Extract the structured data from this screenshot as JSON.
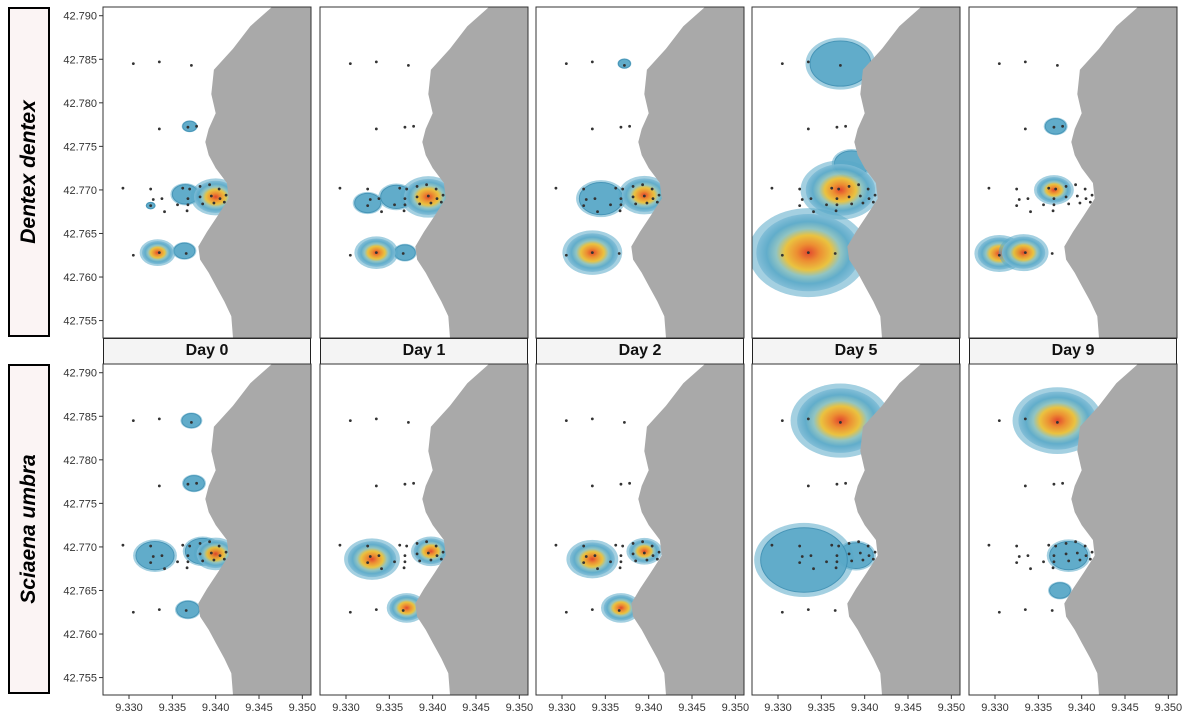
{
  "species_labels": [
    "Dentex dentex",
    "Sciaena umbra"
  ],
  "day_labels": [
    "Day 0",
    "Day 1",
    "Day 2",
    "Day 5",
    "Day 9"
  ],
  "colors": {
    "land": "#a9a9a9",
    "sea": "#ffffff",
    "density_low": "#5aa9c8",
    "density_mid": "#f2c12e",
    "density_high": "#e8381a",
    "receiver": "#333333"
  },
  "chart_data": {
    "type": "heatmap",
    "title": "",
    "xlabel": "",
    "ylabel": "",
    "xlim": [
      9.327,
      9.351
    ],
    "ylim": [
      42.753,
      42.791
    ],
    "x_ticks": [
      "9.330",
      "9.335",
      "9.340",
      "9.345",
      "9.350"
    ],
    "y_ticks": [
      "42.790",
      "42.785",
      "42.780",
      "42.775",
      "42.770",
      "42.765",
      "42.760",
      "42.755"
    ],
    "grid": false,
    "receivers": [
      [
        9.3305,
        42.7845
      ],
      [
        9.3335,
        42.7847
      ],
      [
        9.3372,
        42.7843
      ],
      [
        9.3335,
        42.777
      ],
      [
        9.3368,
        42.7772
      ],
      [
        9.3378,
        42.7773
      ],
      [
        9.3293,
        42.7702
      ],
      [
        9.3325,
        42.7701
      ],
      [
        9.3362,
        42.7702
      ],
      [
        9.337,
        42.7701
      ],
      [
        9.3382,
        42.7704
      ],
      [
        9.3393,
        42.7706
      ],
      [
        9.3404,
        42.7701
      ],
      [
        9.3328,
        42.7689
      ],
      [
        9.3338,
        42.769
      ],
      [
        9.3368,
        42.769
      ],
      [
        9.3382,
        42.7692
      ],
      [
        9.3395,
        42.7693
      ],
      [
        9.3405,
        42.769
      ],
      [
        9.3412,
        42.7694
      ],
      [
        9.3325,
        42.7682
      ],
      [
        9.3356,
        42.7683
      ],
      [
        9.3368,
        42.7683
      ],
      [
        9.3385,
        42.7684
      ],
      [
        9.3398,
        42.7685
      ],
      [
        9.341,
        42.7686
      ],
      [
        9.3341,
        42.7675
      ],
      [
        9.3367,
        42.7676
      ],
      [
        9.3305,
        42.7625
      ],
      [
        9.3335,
        42.7628
      ],
      [
        9.3366,
        42.7627
      ]
    ],
    "panels": [
      {
        "species": "Dentex dentex",
        "day": "Day 0",
        "centers": [
          {
            "x": 9.34,
            "y": 42.7692,
            "r": 0.0025,
            "peak": 0.95
          },
          {
            "x": 9.3365,
            "y": 42.7695,
            "r": 0.0015,
            "peak": 0.3
          },
          {
            "x": 9.3333,
            "y": 42.7628,
            "r": 0.0018,
            "peak": 0.45
          },
          {
            "x": 9.3364,
            "y": 42.763,
            "r": 0.0012,
            "peak": 0.2
          },
          {
            "x": 9.337,
            "y": 42.7773,
            "r": 0.0008,
            "peak": 0.15
          },
          {
            "x": 9.3325,
            "y": 42.7682,
            "r": 0.0005,
            "peak": 0.1
          }
        ]
      },
      {
        "species": "Dentex dentex",
        "day": "Day 1",
        "centers": [
          {
            "x": 9.3395,
            "y": 42.7692,
            "r": 0.0028,
            "peak": 0.9
          },
          {
            "x": 9.3358,
            "y": 42.7692,
            "r": 0.0018,
            "peak": 0.35
          },
          {
            "x": 9.3325,
            "y": 42.7685,
            "r": 0.0015,
            "peak": 0.2
          },
          {
            "x": 9.3335,
            "y": 42.7628,
            "r": 0.0022,
            "peak": 0.6
          },
          {
            "x": 9.3368,
            "y": 42.7628,
            "r": 0.0012,
            "peak": 0.2
          }
        ]
      },
      {
        "species": "Dentex dentex",
        "day": "Day 2",
        "centers": [
          {
            "x": 9.3395,
            "y": 42.7694,
            "r": 0.0026,
            "peak": 0.9
          },
          {
            "x": 9.3345,
            "y": 42.769,
            "r": 0.0025,
            "peak": 0.25
          },
          {
            "x": 9.3335,
            "y": 42.7628,
            "r": 0.003,
            "peak": 0.85
          },
          {
            "x": 9.3372,
            "y": 42.7845,
            "r": 0.0007,
            "peak": 0.15
          }
        ]
      },
      {
        "species": "Dentex dentex",
        "day": "Day 5",
        "centers": [
          {
            "x": 9.3335,
            "y": 42.7628,
            "r": 0.006,
            "peak": 1.0
          },
          {
            "x": 9.3372,
            "y": 42.77,
            "r": 0.004,
            "peak": 0.45
          },
          {
            "x": 9.3372,
            "y": 42.7845,
            "r": 0.0035,
            "peak": 0.3
          },
          {
            "x": 9.3385,
            "y": 42.773,
            "r": 0.002,
            "peak": 0.2
          }
        ]
      },
      {
        "species": "Dentex dentex",
        "day": "Day 9",
        "centers": [
          {
            "x": 9.3305,
            "y": 42.7627,
            "r": 0.0025,
            "peak": 0.55
          },
          {
            "x": 9.3333,
            "y": 42.7628,
            "r": 0.0025,
            "peak": 0.8
          },
          {
            "x": 9.3368,
            "y": 42.77,
            "r": 0.002,
            "peak": 0.7
          },
          {
            "x": 9.337,
            "y": 42.7773,
            "r": 0.0012,
            "peak": 0.25
          }
        ]
      },
      {
        "species": "Sciaena umbra",
        "day": "Day 0",
        "centers": [
          {
            "x": 9.34,
            "y": 42.7692,
            "r": 0.0022,
            "peak": 0.9
          },
          {
            "x": 9.3385,
            "y": 42.7695,
            "r": 0.002,
            "peak": 0.35
          },
          {
            "x": 9.333,
            "y": 42.769,
            "r": 0.0022,
            "peak": 0.25
          },
          {
            "x": 9.3368,
            "y": 42.7628,
            "r": 0.0013,
            "peak": 0.25
          },
          {
            "x": 9.3372,
            "y": 42.7845,
            "r": 0.0011,
            "peak": 0.2
          },
          {
            "x": 9.3375,
            "y": 42.7773,
            "r": 0.0012,
            "peak": 0.2
          }
        ]
      },
      {
        "species": "Sciaena umbra",
        "day": "Day 1",
        "centers": [
          {
            "x": 9.333,
            "y": 42.7686,
            "r": 0.0028,
            "peak": 0.85
          },
          {
            "x": 9.3398,
            "y": 42.7695,
            "r": 0.002,
            "peak": 0.65
          },
          {
            "x": 9.337,
            "y": 42.763,
            "r": 0.002,
            "peak": 0.5
          }
        ]
      },
      {
        "species": "Sciaena umbra",
        "day": "Day 2",
        "centers": [
          {
            "x": 9.3335,
            "y": 42.7686,
            "r": 0.0026,
            "peak": 0.85
          },
          {
            "x": 9.3395,
            "y": 42.7695,
            "r": 0.0018,
            "peak": 0.45
          },
          {
            "x": 9.3368,
            "y": 42.763,
            "r": 0.002,
            "peak": 0.5
          }
        ]
      },
      {
        "species": "Sciaena umbra",
        "day": "Day 5",
        "centers": [
          {
            "x": 9.3372,
            "y": 42.7845,
            "r": 0.005,
            "peak": 1.0
          },
          {
            "x": 9.333,
            "y": 42.7685,
            "r": 0.005,
            "peak": 0.35
          },
          {
            "x": 9.339,
            "y": 42.769,
            "r": 0.002,
            "peak": 0.2
          }
        ]
      },
      {
        "species": "Sciaena umbra",
        "day": "Day 9",
        "centers": [
          {
            "x": 9.3372,
            "y": 42.7845,
            "r": 0.0045,
            "peak": 0.95
          },
          {
            "x": 9.3385,
            "y": 42.769,
            "r": 0.0022,
            "peak": 0.3
          },
          {
            "x": 9.3375,
            "y": 42.765,
            "r": 0.0012,
            "peak": 0.15
          }
        ]
      }
    ]
  }
}
